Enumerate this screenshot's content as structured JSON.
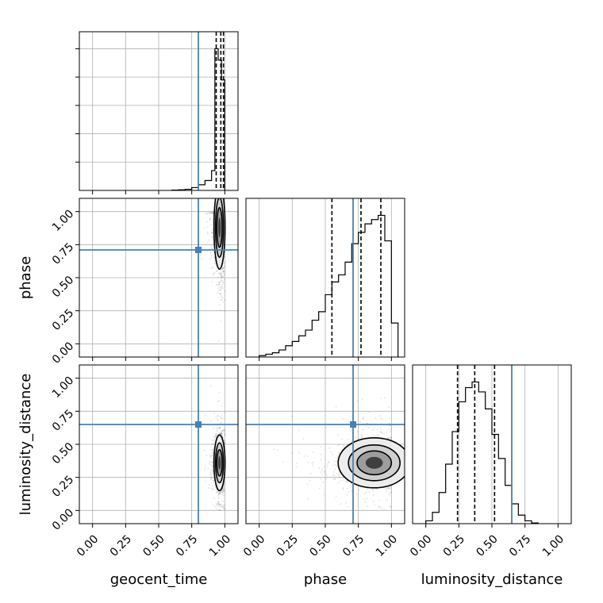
{
  "chart_data": {
    "type": "corner",
    "parameters": [
      "geocent_time",
      "phase",
      "luminosity_distance"
    ],
    "axis_range": [
      -0.1,
      1.1
    ],
    "tick_labels": [
      "0.00",
      "0.25",
      "0.50",
      "0.75",
      "1.00"
    ],
    "tick_values": [
      0,
      0.25,
      0.5,
      0.75,
      1.0
    ],
    "grid": true,
    "truth_color": "#4682b4",
    "contour_color": "#000000",
    "truths": {
      "geocent_time": 0.8,
      "phase": 0.71,
      "luminosity_distance": 0.65
    },
    "quantiles": {
      "geocent_time": [
        0.935,
        0.97,
        0.99
      ],
      "phase": [
        0.55,
        0.77,
        0.92
      ],
      "luminosity_distance": [
        0.24,
        0.37,
        0.52
      ]
    },
    "histograms": {
      "geocent_time": {
        "edges": [
          0.6,
          0.65,
          0.7,
          0.75,
          0.8,
          0.85,
          0.9,
          0.925,
          0.95,
          0.975,
          1.0
        ],
        "counts": [
          0.002,
          0.004,
          0.008,
          0.02,
          0.04,
          0.07,
          0.14,
          1.0,
          0.92,
          0.78
        ]
      },
      "phase": {
        "edges": [
          0.0,
          0.05,
          0.1,
          0.15,
          0.2,
          0.25,
          0.3,
          0.35,
          0.4,
          0.45,
          0.5,
          0.55,
          0.6,
          0.65,
          0.7,
          0.75,
          0.8,
          0.85,
          0.9,
          0.95,
          1.0,
          1.05
        ],
        "counts": [
          0.01,
          0.02,
          0.03,
          0.05,
          0.08,
          0.11,
          0.15,
          0.19,
          0.26,
          0.32,
          0.44,
          0.53,
          0.58,
          0.67,
          0.8,
          0.88,
          0.94,
          0.97,
          1.0,
          0.82,
          0.24
        ]
      },
      "luminosity_distance": {
        "edges": [
          0.0,
          0.05,
          0.1,
          0.15,
          0.2,
          0.25,
          0.3,
          0.35,
          0.4,
          0.45,
          0.5,
          0.55,
          0.6,
          0.65,
          0.7,
          0.75,
          0.8,
          0.85
        ],
        "counts": [
          0.02,
          0.08,
          0.22,
          0.42,
          0.65,
          0.86,
          0.96,
          1.0,
          0.93,
          0.81,
          0.63,
          0.46,
          0.27,
          0.14,
          0.06,
          0.02,
          0.005
        ]
      }
    },
    "posterior_peaks": {
      "phase|geocent_time": {
        "x": 0.96,
        "y": 0.88,
        "sx": 0.02,
        "sy": 0.15
      },
      "luminosity_distance|geocent_time": {
        "x": 0.96,
        "y": 0.36,
        "sx": 0.02,
        "sy": 0.1
      },
      "luminosity_distance|phase": {
        "x": 0.87,
        "y": 0.36,
        "sx": 0.13,
        "sy": 0.09
      }
    }
  }
}
